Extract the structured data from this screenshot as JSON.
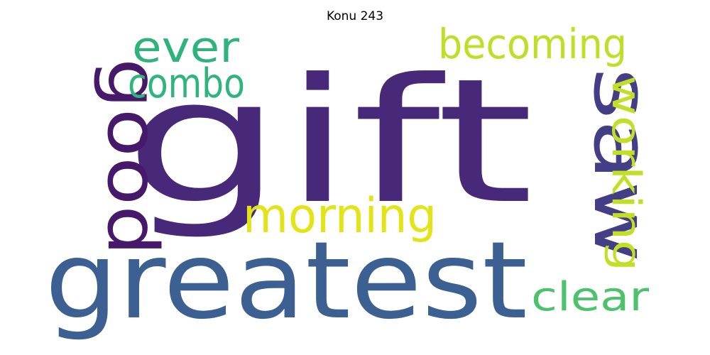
{
  "title": "Konu 243",
  "words": {
    "gift": {
      "text": "gift",
      "color": "#482878"
    },
    "greatest": {
      "text": "greatest",
      "color": "#3b6091"
    },
    "saw": {
      "text": "saw",
      "color": "#433e85"
    },
    "good": {
      "text": "good",
      "color": "#46196b"
    },
    "morning": {
      "text": "morning",
      "color": "#e3e418"
    },
    "ever": {
      "text": "ever",
      "color": "#2eb37c"
    },
    "combo": {
      "text": "combo",
      "color": "#2fb47c"
    },
    "becoming": {
      "text": "becoming",
      "color": "#bedf26"
    },
    "working": {
      "text": "working",
      "color": "#c0df25"
    },
    "clear": {
      "text": "clear",
      "color": "#4cc26c"
    }
  }
}
